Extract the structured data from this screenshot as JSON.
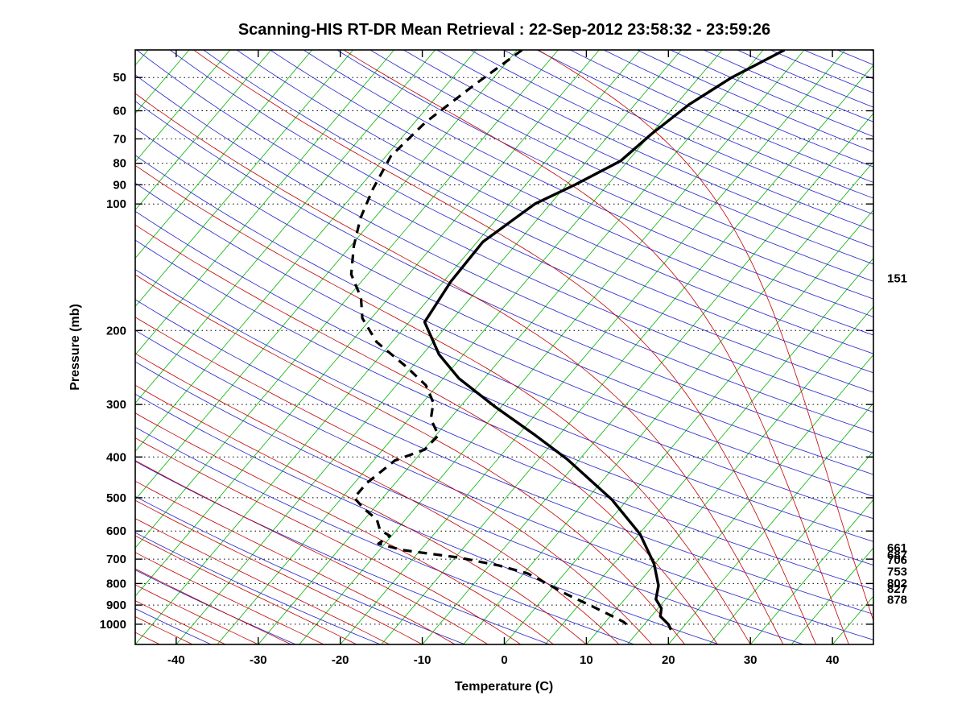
{
  "title": "Scanning-HIS RT-DR Mean Retrieval : 22-Sep-2012 23:58:32 - 23:59:26",
  "axes": {
    "x_label": "Temperature (C)",
    "y_label": "Pressure (mb)",
    "x_ticks": [
      -40,
      -30,
      -20,
      -10,
      0,
      10,
      20,
      30,
      40
    ],
    "y_ticks": [
      50,
      60,
      70,
      80,
      90,
      100,
      200,
      300,
      400,
      500,
      600,
      700,
      800,
      900,
      1000
    ]
  },
  "chart_data": {
    "type": "line",
    "subtype": "skew-t-log-p-sounding",
    "title": "Scanning-HIS RT-DR Mean Retrieval : 22-Sep-2012 23:58:32 - 23:59:26",
    "xlabel": "Temperature (C)",
    "ylabel": "Pressure (mb)",
    "x_range": [
      -45,
      45
    ],
    "p_range": [
      43,
      1117
    ],
    "skew": 0.85,
    "grid": "horizontal-dotted-at-pressure-ticks",
    "legend": "none",
    "background": {
      "isotherms": {
        "color": "#00b300",
        "t_start": -120,
        "t_end": 45,
        "step": 5
      },
      "dry_adiabats": {
        "color": "#2020cc",
        "theta_start": 220,
        "theta_end": 640,
        "step": 10
      },
      "moist_adiabats": {
        "color": "#c00000",
        "t0_start": -110,
        "t0_end": 46,
        "step": 4
      }
    },
    "pressure_annotations": [
      151,
      661,
      687,
      706,
      753,
      802,
      827,
      878
    ],
    "series": [
      {
        "name": "temperature",
        "style": "solid",
        "color": "#000000",
        "width": 3.4,
        "points_p_mb_t_c": [
          [
            43,
            -27.4
          ],
          [
            50,
            -31.0
          ],
          [
            58,
            -33.4
          ],
          [
            68,
            -34.9
          ],
          [
            79,
            -35.9
          ],
          [
            90,
            -39.0
          ],
          [
            100,
            -41.9
          ],
          [
            123,
            -44.3
          ],
          [
            153,
            -44.1
          ],
          [
            191,
            -43.1
          ],
          [
            228,
            -38.0
          ],
          [
            260,
            -33.1
          ],
          [
            304,
            -25.7
          ],
          [
            355,
            -17.9
          ],
          [
            405,
            -11.5
          ],
          [
            505,
            -1.9
          ],
          [
            610,
            5.1
          ],
          [
            718,
            9.9
          ],
          [
            809,
            12.7
          ],
          [
            872,
            13.8
          ],
          [
            916,
            15.4
          ],
          [
            957,
            16.1
          ],
          [
            1000,
            17.9
          ],
          [
            1031,
            18.8
          ]
        ]
      },
      {
        "name": "dewpoint",
        "style": "dashed",
        "color": "#000000",
        "width": 3.2,
        "points_p_mb_t_c": [
          [
            43,
            -59.4
          ],
          [
            52,
            -61.6
          ],
          [
            64,
            -63.7
          ],
          [
            77,
            -64.4
          ],
          [
            92,
            -63.2
          ],
          [
            108,
            -61.7
          ],
          [
            126,
            -59.6
          ],
          [
            147,
            -57.0
          ],
          [
            167,
            -53.4
          ],
          [
            187,
            -51.1
          ],
          [
            213,
            -46.9
          ],
          [
            244,
            -40.7
          ],
          [
            270,
            -36.4
          ],
          [
            297,
            -33.7
          ],
          [
            325,
            -32.3
          ],
          [
            355,
            -29.7
          ],
          [
            384,
            -29.9
          ],
          [
            408,
            -32.4
          ],
          [
            462,
            -33.5
          ],
          [
            500,
            -33.5
          ],
          [
            532,
            -31.1
          ],
          [
            563,
            -28.5
          ],
          [
            597,
            -27.0
          ],
          [
            616,
            -25.2
          ],
          [
            643,
            -25.8
          ],
          [
            666,
            -22.2
          ],
          [
            694,
            -14.5
          ],
          [
            725,
            -8.8
          ],
          [
            757,
            -4.5
          ],
          [
            802,
            -1.0
          ],
          [
            850,
            2.5
          ],
          [
            896,
            6.0
          ],
          [
            944,
            9.4
          ],
          [
            987,
            12.2
          ],
          [
            1018,
            13.6
          ]
        ]
      }
    ]
  }
}
